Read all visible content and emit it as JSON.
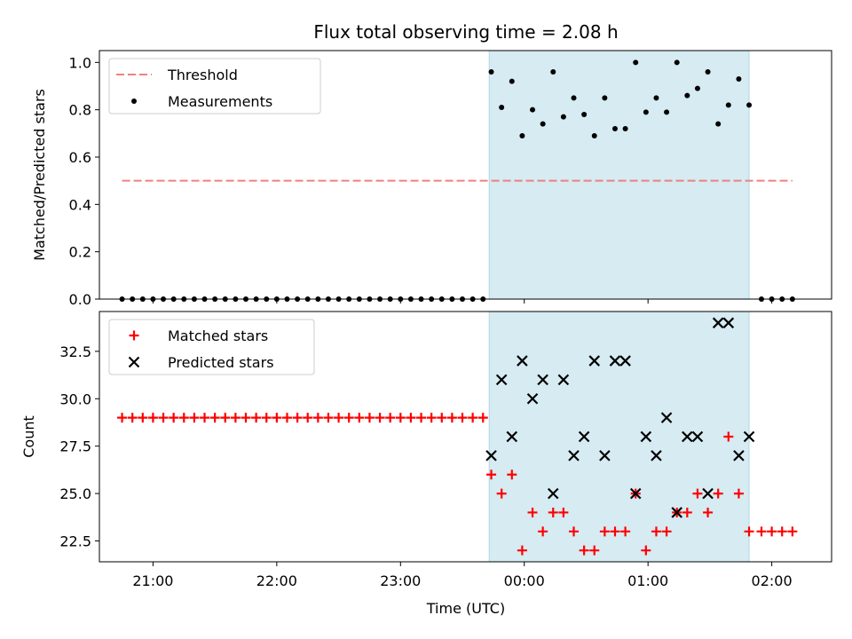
{
  "chart_data": [
    {
      "type": "scatter",
      "title": "Flux total observing time = 2.08 h",
      "xlabel": "",
      "ylabel": "Matched/Predicted stars",
      "xlim": [
        "20:34",
        "02:29"
      ],
      "ylim": [
        0,
        1.05
      ],
      "x_ticks": [
        "21:00",
        "22:00",
        "23:00",
        "00:00",
        "01:00",
        "02:00"
      ],
      "y_ticks": [
        "0.0",
        "0.2",
        "0.4",
        "0.6",
        "0.8",
        "1.0"
      ],
      "shaded_region": {
        "x_start": "23:43",
        "x_end": "01:49",
        "color": "#add8e6"
      },
      "legend": {
        "placement": "top-left",
        "entries": [
          "Threshold",
          "Measurements"
        ]
      },
      "series": [
        {
          "name": "Threshold",
          "style": "dashed-line",
          "color": "#f08080",
          "x": [
            "20:45",
            "02:10"
          ],
          "values": [
            0.5,
            0.5
          ]
        },
        {
          "name": "Measurements",
          "style": "dot",
          "color": "#000000",
          "x": [
            "20:45",
            "20:50",
            "20:55",
            "21:00",
            "21:05",
            "21:10",
            "21:15",
            "21:20",
            "21:25",
            "21:30",
            "21:35",
            "21:40",
            "21:45",
            "21:50",
            "21:55",
            "22:00",
            "22:05",
            "22:10",
            "22:15",
            "22:20",
            "22:25",
            "22:30",
            "22:35",
            "22:40",
            "22:45",
            "22:50",
            "22:55",
            "23:00",
            "23:05",
            "23:10",
            "23:15",
            "23:20",
            "23:25",
            "23:30",
            "23:35",
            "23:40",
            "23:44",
            "23:49",
            "23:54",
            "23:59",
            "00:04",
            "00:09",
            "00:14",
            "00:19",
            "00:24",
            "00:29",
            "00:34",
            "00:39",
            "00:44",
            "00:49",
            "00:54",
            "00:59",
            "01:04",
            "01:09",
            "01:14",
            "01:19",
            "01:24",
            "01:29",
            "01:34",
            "01:39",
            "01:44",
            "01:49",
            "01:55",
            "02:00",
            "02:05",
            "02:10"
          ],
          "values": [
            0,
            0,
            0,
            0,
            0,
            0,
            0,
            0,
            0,
            0,
            0,
            0,
            0,
            0,
            0,
            0,
            0,
            0,
            0,
            0,
            0,
            0,
            0,
            0,
            0,
            0,
            0,
            0,
            0,
            0,
            0,
            0,
            0,
            0,
            0,
            0,
            0.96,
            0.81,
            0.92,
            0.69,
            0.8,
            0.74,
            0.96,
            0.77,
            0.85,
            0.78,
            0.69,
            0.85,
            0.72,
            0.72,
            1.0,
            0.79,
            0.85,
            0.79,
            1.0,
            0.86,
            0.89,
            0.96,
            0.74,
            0.82,
            0.93,
            0.82,
            0,
            0,
            0,
            0
          ]
        }
      ]
    },
    {
      "type": "scatter",
      "title": "",
      "xlabel": "Time (UTC)",
      "ylabel": "Count",
      "xlim": [
        "20:34",
        "02:29"
      ],
      "ylim": [
        21.4,
        34.6
      ],
      "x_ticks": [
        "21:00",
        "22:00",
        "23:00",
        "00:00",
        "01:00",
        "02:00"
      ],
      "y_ticks": [
        "22.5",
        "25.0",
        "27.5",
        "30.0",
        "32.5"
      ],
      "shaded_region": {
        "x_start": "23:43",
        "x_end": "01:49",
        "color": "#add8e6"
      },
      "legend": {
        "placement": "top-left",
        "entries": [
          "Matched stars",
          "Predicted stars"
        ]
      },
      "series": [
        {
          "name": "Matched stars",
          "style": "plus",
          "color": "#ff0000",
          "x": [
            "20:45",
            "20:50",
            "20:55",
            "21:00",
            "21:05",
            "21:10",
            "21:15",
            "21:20",
            "21:25",
            "21:30",
            "21:35",
            "21:40",
            "21:45",
            "21:50",
            "21:55",
            "22:00",
            "22:05",
            "22:10",
            "22:15",
            "22:20",
            "22:25",
            "22:30",
            "22:35",
            "22:40",
            "22:45",
            "22:50",
            "22:55",
            "23:00",
            "23:05",
            "23:10",
            "23:15",
            "23:20",
            "23:25",
            "23:30",
            "23:35",
            "23:40",
            "23:44",
            "23:49",
            "23:54",
            "23:59",
            "00:04",
            "00:09",
            "00:14",
            "00:19",
            "00:24",
            "00:29",
            "00:34",
            "00:39",
            "00:44",
            "00:49",
            "00:54",
            "00:59",
            "01:04",
            "01:09",
            "01:14",
            "01:19",
            "01:24",
            "01:29",
            "01:34",
            "01:39",
            "01:44",
            "01:49",
            "01:55",
            "02:00",
            "02:05",
            "02:10"
          ],
          "values": [
            29,
            29,
            29,
            29,
            29,
            29,
            29,
            29,
            29,
            29,
            29,
            29,
            29,
            29,
            29,
            29,
            29,
            29,
            29,
            29,
            29,
            29,
            29,
            29,
            29,
            29,
            29,
            29,
            29,
            29,
            29,
            29,
            29,
            29,
            29,
            29,
            26,
            25,
            26,
            22,
            24,
            23,
            24,
            24,
            23,
            22,
            22,
            23,
            23,
            23,
            25,
            22,
            23,
            23,
            24,
            24,
            25,
            24,
            25,
            28,
            25,
            23,
            23,
            23,
            23,
            23
          ]
        },
        {
          "name": "Predicted stars",
          "style": "cross",
          "color": "#000000",
          "x": [
            "23:44",
            "23:49",
            "23:54",
            "23:59",
            "00:04",
            "00:09",
            "00:14",
            "00:19",
            "00:24",
            "00:29",
            "00:34",
            "00:39",
            "00:44",
            "00:49",
            "00:54",
            "00:59",
            "01:04",
            "01:09",
            "01:14",
            "01:19",
            "01:24",
            "01:29",
            "01:34",
            "01:39",
            "01:44",
            "01:49"
          ],
          "values": [
            27,
            31,
            28,
            32,
            30,
            31,
            25,
            31,
            27,
            28,
            32,
            27,
            32,
            32,
            25,
            28,
            27,
            29,
            24,
            28,
            28,
            25,
            34,
            34,
            27,
            28
          ]
        }
      ]
    }
  ]
}
